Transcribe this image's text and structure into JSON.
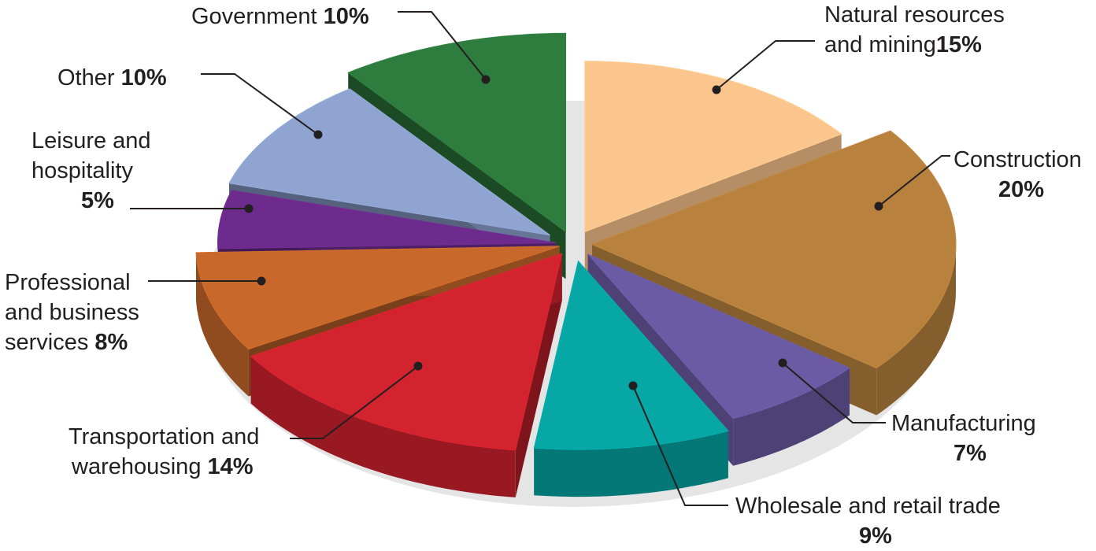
{
  "chart_data": {
    "type": "pie",
    "style": "3d-exploded",
    "slices": [
      {
        "key": "natural",
        "label_lines": [
          "Natural resources",
          "and mining"
        ],
        "pct_text": "15%",
        "value": 15,
        "color": "#fbc58e"
      },
      {
        "key": "construction",
        "label_lines": [
          "Construction"
        ],
        "pct_text": "20%",
        "value": 20,
        "color": "#b8823e"
      },
      {
        "key": "manufacturing",
        "label_lines": [
          "Manufacturing"
        ],
        "pct_text": "7%",
        "value": 7,
        "color": "#6b5aa4"
      },
      {
        "key": "wholesale",
        "label_lines": [
          "Wholesale and retail trade"
        ],
        "pct_text": "9%",
        "value": 9,
        "color": "#06a7a5"
      },
      {
        "key": "transport",
        "label_lines": [
          "Transportation and",
          "warehousing"
        ],
        "pct_text": "14%",
        "value": 14,
        "color": "#d3232e"
      },
      {
        "key": "professional",
        "label_lines": [
          "Professional",
          "and business",
          "services"
        ],
        "pct_text": "8%",
        "value": 8,
        "color": "#c8692b"
      },
      {
        "key": "leisure",
        "label_lines": [
          "Leisure and",
          "hospitality"
        ],
        "pct_text": "5%",
        "value": 5,
        "color": "#6e2b8e"
      },
      {
        "key": "other",
        "label_lines": [
          "Other"
        ],
        "pct_text": "10%",
        "value": 10,
        "color": "#8fa4d0"
      },
      {
        "key": "government",
        "label_lines": [
          "Government"
        ],
        "pct_text": "10%",
        "value": 10,
        "color": "#2e7c3e"
      }
    ]
  }
}
